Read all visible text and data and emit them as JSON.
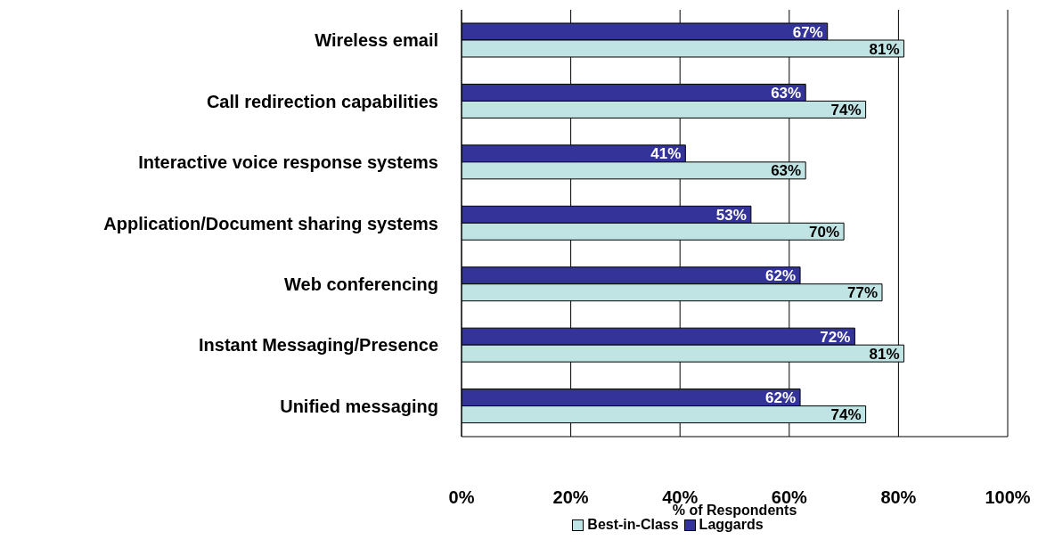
{
  "chart_data": {
    "type": "bar",
    "orientation": "horizontal",
    "xlabel": "% of Respondents",
    "categories": [
      "Wireless email",
      "Call redirection capabilities",
      "Interactive voice response systems",
      "Application/Document sharing systems",
      "Web conferencing",
      "Instant Messaging/Presence",
      "Unified messaging"
    ],
    "series": [
      {
        "name": "Best-in-Class",
        "color": "#c0e4e4",
        "values": [
          81,
          74,
          63,
          70,
          77,
          81,
          74
        ],
        "value_labels": [
          "81%",
          "74%",
          "63%",
          "70%",
          "77%",
          "81%",
          "74%"
        ]
      },
      {
        "name": "Laggards",
        "color": "#333399",
        "values": [
          67,
          63,
          41,
          53,
          62,
          72,
          62
        ],
        "value_labels": [
          "67%",
          "63%",
          "41%",
          "53%",
          "62%",
          "72%",
          "62%"
        ]
      }
    ],
    "xlim": [
      0,
      100
    ],
    "xticks": [
      {
        "value": 0,
        "label": "0%"
      },
      {
        "value": 20,
        "label": "20%"
      },
      {
        "value": 40,
        "label": "40%"
      },
      {
        "value": 60,
        "label": "60%"
      },
      {
        "value": 80,
        "label": "80%"
      },
      {
        "value": 100,
        "label": "100%"
      }
    ],
    "grid": "x",
    "legend": "bottom"
  }
}
